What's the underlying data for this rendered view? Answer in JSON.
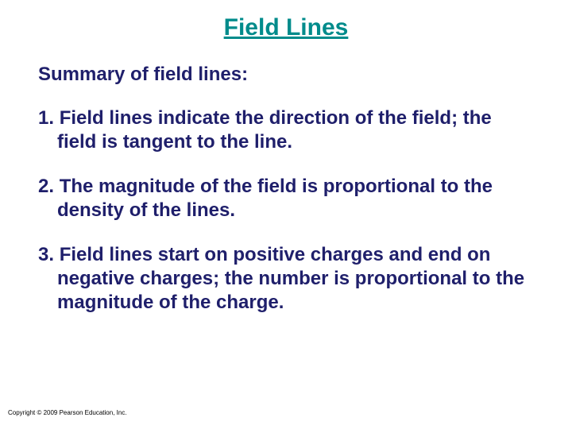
{
  "title": {
    "text": "Field Lines",
    "color": "#008b8b"
  },
  "subtitle": {
    "text": "Summary of field lines:",
    "color": "#1f1f6b"
  },
  "items": [
    {
      "num": "1.",
      "text": "Field lines indicate the direction of the field; the field is tangent to the line."
    },
    {
      "num": "2.",
      "text": "The magnitude of the field is proportional to the density of the lines."
    },
    {
      "num": "3.",
      "text": "Field lines start on positive charges and end on negative charges; the number is proportional to the magnitude of the charge."
    }
  ],
  "item_color": "#1f1f6b",
  "copyright": "Copyright © 2009 Pearson Education, Inc."
}
